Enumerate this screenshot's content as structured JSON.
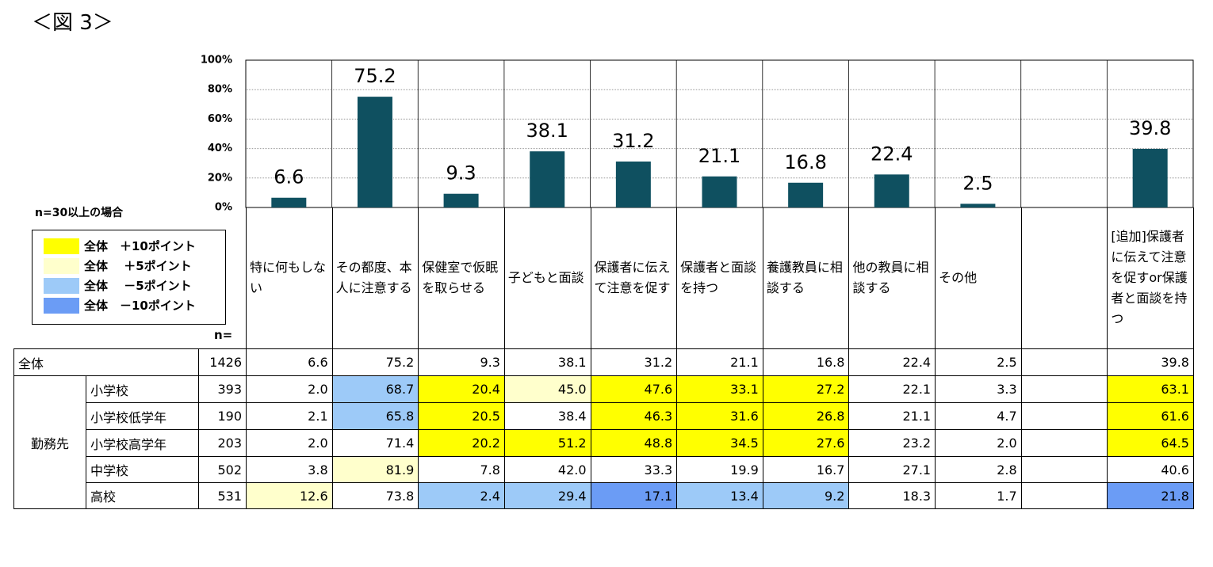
{
  "title": "＜図 3＞",
  "chart_data": {
    "type": "bar",
    "categories": [
      "特に何もしない",
      "その都度、本人に注意する",
      "保健室で仮眠を取らせる",
      "子どもと面談",
      "保護者に伝えて注意を促す",
      "保護者と面談を持つ",
      "養護教員に相談する",
      "他の教員に相談する",
      "その他",
      null,
      "[追加]保護者に伝えて注意を促すor保護者と面談を持つ"
    ],
    "values": [
      6.6,
      75.2,
      9.3,
      38.1,
      31.2,
      21.1,
      16.8,
      22.4,
      2.5,
      null,
      39.8
    ],
    "color": "#0f5060",
    "ylim": [
      0,
      100
    ],
    "yticks": [
      {
        "value": 0,
        "label": "0%"
      },
      {
        "value": 20,
        "label": "20%"
      },
      {
        "value": 40,
        "label": "40%"
      },
      {
        "value": 60,
        "label": "60%"
      },
      {
        "value": 80,
        "label": "80%"
      },
      {
        "value": 100,
        "label": "100%"
      }
    ],
    "grid": true
  },
  "legend": {
    "note": "n=30以上の場合",
    "items": [
      {
        "label": "全体　＋10ポイント",
        "color": "#ffff00"
      },
      {
        "label": "全体　 ＋5ポイント",
        "color": "#ffffcc"
      },
      {
        "label": "全体　 －5ポイント",
        "color": "#9dcaf8"
      },
      {
        "label": "全体　－10ポイント",
        "color": "#6b9cf5"
      }
    ]
  },
  "table": {
    "n_header": "n=",
    "group": "勤務先",
    "rows": [
      {
        "label": "全体",
        "n": "1426",
        "cells": [
          "6.6",
          "75.2",
          "9.3",
          "38.1",
          "31.2",
          "21.1",
          "16.8",
          "22.4",
          "2.5",
          null,
          "39.8"
        ],
        "highlight": [
          null,
          null,
          null,
          null,
          null,
          null,
          null,
          null,
          null,
          null,
          null
        ]
      },
      {
        "label": "小学校",
        "n": "393",
        "cells": [
          "2.0",
          "68.7",
          "20.4",
          "45.0",
          "47.6",
          "33.1",
          "27.2",
          "22.1",
          "3.3",
          null,
          "63.1"
        ],
        "highlight": [
          null,
          2,
          0,
          1,
          0,
          0,
          0,
          null,
          null,
          null,
          0
        ]
      },
      {
        "label": "小学校低学年",
        "n": "190",
        "cells": [
          "2.1",
          "65.8",
          "20.5",
          "38.4",
          "46.3",
          "31.6",
          "26.8",
          "21.1",
          "4.7",
          null,
          "61.6"
        ],
        "highlight": [
          null,
          2,
          0,
          null,
          0,
          0,
          0,
          null,
          null,
          null,
          0
        ]
      },
      {
        "label": "小学校高学年",
        "n": "203",
        "cells": [
          "2.0",
          "71.4",
          "20.2",
          "51.2",
          "48.8",
          "34.5",
          "27.6",
          "23.2",
          "2.0",
          null,
          "64.5"
        ],
        "highlight": [
          null,
          null,
          0,
          0,
          0,
          0,
          0,
          null,
          null,
          null,
          0
        ]
      },
      {
        "label": "中学校",
        "n": "502",
        "cells": [
          "3.8",
          "81.9",
          "7.8",
          "42.0",
          "33.3",
          "19.9",
          "16.7",
          "27.1",
          "2.8",
          null,
          "40.6"
        ],
        "highlight": [
          null,
          1,
          null,
          null,
          null,
          null,
          null,
          null,
          null,
          null,
          null
        ]
      },
      {
        "label": "高校",
        "n": "531",
        "cells": [
          "12.6",
          "73.8",
          "2.4",
          "29.4",
          "17.1",
          "13.4",
          "9.2",
          "18.3",
          "1.7",
          null,
          "21.8"
        ],
        "highlight": [
          1,
          null,
          2,
          2,
          3,
          2,
          2,
          null,
          null,
          null,
          3
        ]
      }
    ]
  }
}
